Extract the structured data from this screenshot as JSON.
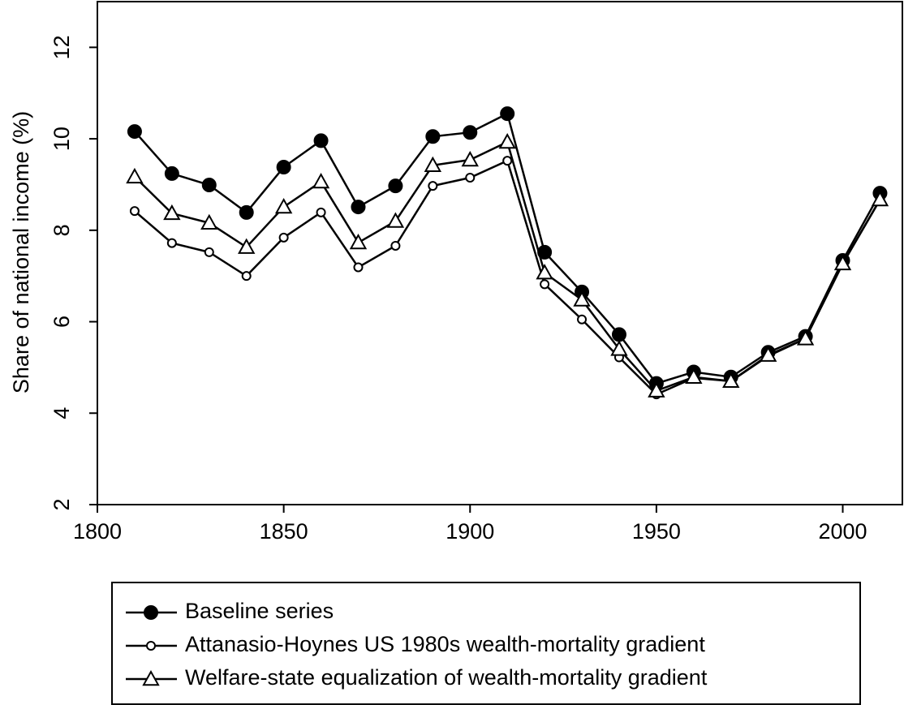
{
  "chart_data": {
    "type": "line",
    "y_label": "Share of national income (%)",
    "x": [
      1810,
      1820,
      1830,
      1840,
      1850,
      1860,
      1870,
      1880,
      1890,
      1900,
      1910,
      1920,
      1930,
      1940,
      1950,
      1960,
      1970,
      1980,
      1990,
      2000,
      2010
    ],
    "series": [
      {
        "name": "Baseline series",
        "color": "#000000",
        "marker": "filled-circle",
        "values": [
          10.16,
          9.24,
          8.99,
          8.39,
          9.38,
          9.96,
          8.51,
          8.97,
          10.05,
          10.14,
          10.55,
          7.52,
          6.65,
          5.72,
          4.65,
          4.9,
          4.79,
          5.33,
          5.68,
          7.34,
          8.81
        ]
      },
      {
        "name": "Attanasio-Hoynes US 1980s wealth-mortality gradient",
        "color": "#000000",
        "marker": "open-circle",
        "values": [
          8.42,
          7.72,
          7.52,
          7.0,
          7.84,
          8.39,
          7.19,
          7.66,
          8.97,
          9.15,
          9.52,
          6.82,
          6.05,
          5.22,
          4.41,
          4.77,
          4.7,
          5.25,
          5.63,
          7.27,
          8.67
        ]
      },
      {
        "name": "Welfare-state equalization of wealth-mortality gradient",
        "color": "#000000",
        "marker": "open-triangle",
        "values": [
          9.17,
          8.37,
          8.16,
          7.63,
          8.51,
          9.06,
          7.73,
          8.2,
          9.42,
          9.54,
          9.93,
          7.07,
          6.48,
          5.4,
          4.49,
          4.79,
          4.7,
          5.27,
          5.63,
          7.27,
          8.67
        ]
      }
    ],
    "xlim": [
      1800,
      2016
    ],
    "ylim": [
      2,
      13
    ],
    "xticks": [
      1800,
      1850,
      1900,
      1950,
      2000
    ],
    "yticks": [
      2,
      4,
      6,
      8,
      10,
      12
    ],
    "grid": false,
    "legend": "bottom"
  }
}
